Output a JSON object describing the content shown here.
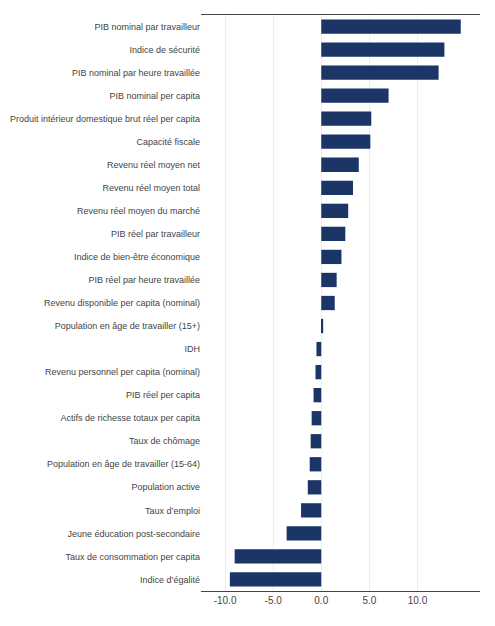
{
  "chart_data": {
    "type": "bar",
    "orientation": "horizontal",
    "categories": [
      "PIB nominal par travailleur",
      "Indice de sécurité",
      "PIB nominal par heure travaillée",
      "PIB nominal per capita",
      "Produit intérieur domestique brut réel per capita",
      "Capacité fiscale",
      "Revenu réel moyen net",
      "Revenu réel moyen total",
      "Revenu réel moyen du marché",
      "PIB réel par travailleur",
      "Indice de bien-être économique",
      "PIB réel par heure travaillée",
      "Revenu disponible per capita (nominal)",
      "Population en âge de travailler (15+)",
      "IDH",
      "Revenu personnel per capita (nominal)",
      "PIB réel per capita",
      "Actifs de richesse totaux per capita",
      "Taux de chômage",
      "Population en âge de travailler (15-64)",
      "Population active",
      "Taux d’emploi",
      "Jeune éducation post-secondaire",
      "Taux de consommation per capita",
      "Indice d’égalité"
    ],
    "values": [
      14.5,
      12.8,
      12.2,
      7.0,
      5.2,
      5.1,
      3.9,
      3.3,
      2.8,
      2.5,
      2.1,
      1.6,
      1.4,
      0.2,
      -0.5,
      -0.6,
      -0.8,
      -1.0,
      -1.1,
      -1.2,
      -1.4,
      -2.1,
      -3.6,
      -9.0,
      -9.5
    ],
    "color": "#1a3566",
    "xlim": [
      -12.5,
      16.5
    ],
    "xticks": [
      {
        "value": -10.0,
        "label": "-10.0"
      },
      {
        "value": -5.0,
        "label": "-5.0"
      },
      {
        "value": 0.0,
        "label": "0.0"
      },
      {
        "value": 5.0,
        "label": "5.0"
      },
      {
        "value": 10.0,
        "label": "10.0"
      }
    ],
    "grid": true
  }
}
